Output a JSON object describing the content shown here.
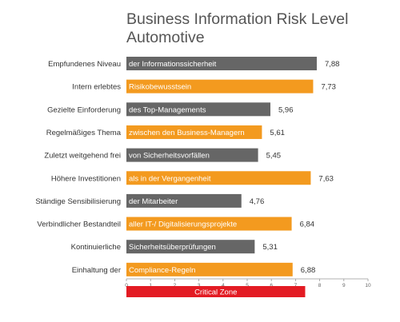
{
  "chart_data": {
    "type": "bar",
    "orientation": "horizontal",
    "title": [
      "Business Information Risk Level",
      "Automotive"
    ],
    "rows": [
      {
        "category": "Empfundenes Niveau",
        "bar_text": "der Informationssicherheit",
        "value": 7.88,
        "value_label": "7,88"
      },
      {
        "category": "Intern erlebtes",
        "bar_text": "Risikobewusstsein",
        "value": 7.73,
        "value_label": "7,73"
      },
      {
        "category": "Gezielte Einforderung",
        "bar_text": "des Top-Managements",
        "value": 5.96,
        "value_label": "5,96"
      },
      {
        "category": "Regelmäßiges Thema",
        "bar_text": "zwischen den Business-Managern",
        "value": 5.61,
        "value_label": "5,61"
      },
      {
        "category": "Zuletzt weitgehend frei",
        "bar_text": "von Sicherheitsvorfällen",
        "value": 5.45,
        "value_label": "5,45"
      },
      {
        "category": "Höhere Investitionen",
        "bar_text": "als in der Vergangenheit",
        "value": 7.63,
        "value_label": "7,63"
      },
      {
        "category": "Ständige Sensibilisierung",
        "bar_text": "der Mitarbeiter",
        "value": 4.76,
        "value_label": "4,76"
      },
      {
        "category": "Verbindlicher Bestandteil",
        "bar_text": "aller IT-/ Digitalisierungsprojekte",
        "value": 6.84,
        "value_label": "6,84"
      },
      {
        "category": "Kontinuierliche",
        "bar_text": "Sicherheitsüberprüfungen",
        "value": 5.31,
        "value_label": "5,31"
      },
      {
        "category": "Einhaltung der",
        "bar_text": "Compliance-Regeln",
        "value": 6.88,
        "value_label": "6,88"
      }
    ],
    "xlim": [
      0,
      10
    ],
    "ticks": [
      0,
      1,
      2,
      3,
      4,
      5,
      6,
      7,
      8,
      9,
      10
    ],
    "colors": [
      "#666666",
      "#f39a1f"
    ],
    "critical_zone": {
      "label": "Critical  Zone",
      "range": [
        0,
        7.4
      ],
      "color": "#e31b23"
    }
  }
}
